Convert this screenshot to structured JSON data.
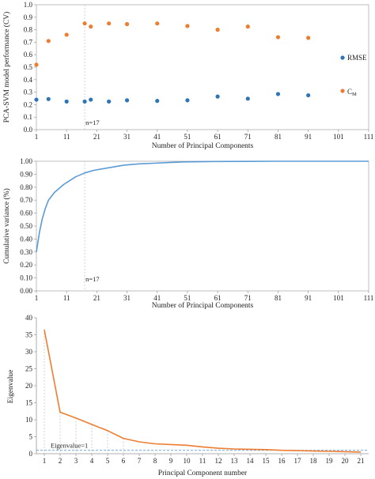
{
  "chart_data": [
    {
      "type": "scatter",
      "xlabel": "Number of Principal Components",
      "ylabel": "PCA-SVM model performance (CV)",
      "xlim": [
        1,
        111
      ],
      "ylim": [
        0,
        1.0
      ],
      "xticks": [
        1,
        11,
        21,
        31,
        41,
        51,
        61,
        71,
        81,
        91,
        101,
        111
      ],
      "yticks": [
        "0.0",
        "0.1",
        "0.2",
        "0.3",
        "0.4",
        "0.5",
        "0.6",
        "0.7",
        "0.8",
        "0.9",
        "1.0"
      ],
      "grid": false,
      "legend_position": "right",
      "vline": {
        "x": 17,
        "label": "n=17"
      },
      "x": [
        1,
        5,
        11,
        17,
        19,
        25,
        31,
        41,
        51,
        61,
        71,
        81,
        91
      ],
      "series": [
        {
          "name": "RMSE",
          "color": "#2e75b6",
          "values": [
            0.24,
            0.245,
            0.225,
            0.225,
            0.24,
            0.225,
            0.235,
            0.23,
            0.235,
            0.265,
            0.248,
            0.285,
            0.275
          ]
        },
        {
          "name": "C",
          "name_subscript": "M",
          "color": "#ed7d31",
          "values": [
            0.52,
            0.71,
            0.76,
            0.85,
            0.825,
            0.85,
            0.845,
            0.85,
            0.83,
            0.8,
            0.825,
            0.74,
            0.735
          ]
        }
      ]
    },
    {
      "type": "line",
      "xlabel": "Number of Principal Components",
      "ylabel": "Cumulative variance (%)",
      "xlim": [
        1,
        111
      ],
      "ylim": [
        0,
        1.0
      ],
      "xticks": [
        1,
        11,
        21,
        31,
        41,
        51,
        61,
        71,
        81,
        91,
        101,
        111
      ],
      "yticks": [
        "0.00",
        "0.10",
        "0.20",
        "0.30",
        "0.40",
        "0.50",
        "0.60",
        "0.70",
        "0.80",
        "0.90",
        "1.00"
      ],
      "grid": false,
      "vline": {
        "x": 17,
        "label": "n=17"
      },
      "series": [
        {
          "color": "#5b9bd5",
          "x": [
            1,
            2,
            3,
            4,
            5,
            6,
            7,
            8,
            10,
            12,
            14,
            17,
            20,
            25,
            30,
            35,
            40,
            45,
            50,
            60,
            70,
            80,
            90,
            100,
            111
          ],
          "values": [
            0.3,
            0.45,
            0.56,
            0.64,
            0.7,
            0.73,
            0.76,
            0.78,
            0.82,
            0.85,
            0.88,
            0.91,
            0.93,
            0.95,
            0.97,
            0.98,
            0.985,
            0.99,
            0.995,
            0.998,
            0.999,
            1.0,
            1.0,
            1.0,
            1.0
          ]
        }
      ]
    },
    {
      "type": "line",
      "xlabel": "Principal Component number",
      "ylabel": "Eigenvalue",
      "xlim": [
        0.5,
        21.5
      ],
      "ylim": [
        0,
        40
      ],
      "xticks": [
        1,
        2,
        3,
        4,
        5,
        6,
        7,
        8,
        9,
        10,
        11,
        12,
        13,
        14,
        15,
        16,
        17,
        18,
        19,
        20,
        21
      ],
      "yticks": [
        "0",
        "5",
        "10",
        "15",
        "20",
        "25",
        "30",
        "35",
        "40"
      ],
      "grid": false,
      "hline": {
        "y": 1,
        "label": "Eigenvalue=1"
      },
      "series": [
        {
          "color": "#ed7d31",
          "x": [
            1,
            2,
            3,
            4,
            5,
            6,
            7,
            8,
            9,
            10,
            11,
            12,
            13,
            14,
            15,
            16,
            17,
            18,
            19,
            20,
            21
          ],
          "values": [
            36.5,
            12.2,
            10.5,
            8.6,
            6.8,
            4.5,
            3.5,
            2.9,
            2.7,
            2.5,
            2.0,
            1.6,
            1.4,
            1.3,
            1.2,
            1.0,
            0.9,
            0.8,
            0.7,
            0.6,
            0.5
          ]
        }
      ]
    }
  ]
}
